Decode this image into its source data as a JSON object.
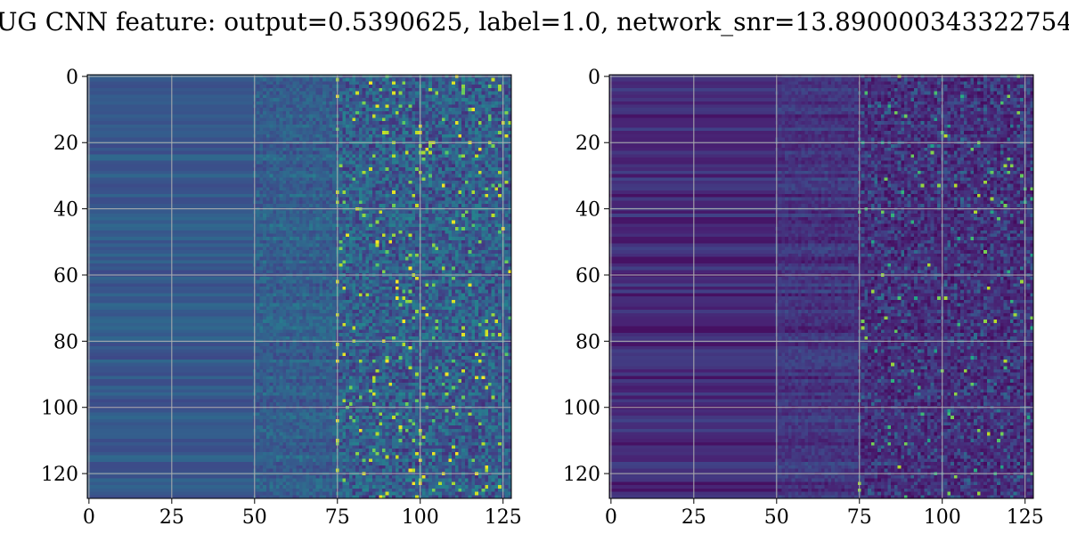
{
  "figure": {
    "title": "UG CNN feature: output=0.5390625, label=1.0, network_snr=13.890000343322754"
  },
  "chart_data": [
    {
      "type": "heatmap",
      "title": "",
      "xlabel": "",
      "ylabel": "",
      "xlim": [
        0,
        127
      ],
      "ylim": [
        127,
        0
      ],
      "x_ticks": [
        0,
        25,
        50,
        75,
        100,
        125
      ],
      "y_ticks": [
        0,
        20,
        40,
        60,
        80,
        100,
        120
      ],
      "grid": true,
      "colormap": "viridis",
      "rows": 128,
      "cols": 128
    },
    {
      "type": "heatmap",
      "title": "",
      "xlabel": "",
      "ylabel": "",
      "xlim": [
        0,
        127
      ],
      "ylim": [
        127,
        0
      ],
      "x_ticks": [
        0,
        25,
        50,
        75,
        100,
        125
      ],
      "y_ticks": [
        0,
        20,
        40,
        60,
        80,
        100,
        120
      ],
      "grid": true,
      "colormap": "viridis",
      "rows": 128,
      "cols": 128
    }
  ]
}
